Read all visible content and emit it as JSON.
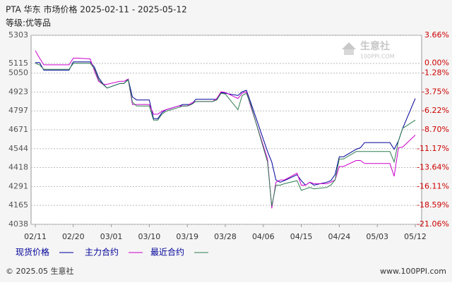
{
  "chart_data": {
    "type": "line",
    "title": "PTA 华东 市场价格 2025-02-11 - 2025-05-12",
    "subtitle": "等级:优等品",
    "x": [
      "02/11",
      "02/12",
      "02/13",
      "02/14",
      "02/17",
      "02/18",
      "02/19",
      "02/20",
      "02/21",
      "02/24",
      "02/25",
      "02/26",
      "02/27",
      "02/28",
      "03/03",
      "03/04",
      "03/05",
      "03/06",
      "03/07",
      "03/10",
      "03/11",
      "03/12",
      "03/13",
      "03/14",
      "03/17",
      "03/18",
      "03/19",
      "03/20",
      "03/21",
      "03/24",
      "03/25",
      "03/26",
      "03/27",
      "03/28",
      "03/31",
      "04/01",
      "04/02",
      "04/03",
      "04/07",
      "04/08",
      "04/09",
      "04/10",
      "04/11",
      "04/14",
      "04/15",
      "04/16",
      "04/17",
      "04/18",
      "04/21",
      "04/22",
      "04/23",
      "04/24",
      "04/25",
      "04/28",
      "04/29",
      "04/30",
      "05/06",
      "05/07",
      "05/08",
      "05/09",
      "05/12"
    ],
    "series": [
      {
        "name": "现货价格",
        "color": "#000099",
        "values": [
          5120,
          5120,
          5070,
          5070,
          5070,
          5070,
          5070,
          5125,
          5125,
          5125,
          5090,
          5020,
          4980,
          4950,
          4980,
          4980,
          5010,
          4890,
          4870,
          4870,
          4745,
          4745,
          4785,
          4805,
          4830,
          4840,
          4840,
          4840,
          4875,
          4875,
          4875,
          4875,
          4920,
          4915,
          4900,
          4925,
          4935,
          4855,
          4525,
          4455,
          4335,
          4320,
          4330,
          4370,
          4330,
          4300,
          4320,
          4300,
          4320,
          4330,
          4370,
          4490,
          4490,
          4540,
          4550,
          4585,
          4585,
          4540,
          4595,
          4680,
          4880
        ]
      },
      {
        "name": "主力合约",
        "color": "#cc00cc",
        "values": [
          5200,
          5150,
          5105,
          5105,
          5105,
          5105,
          5105,
          5150,
          5150,
          5145,
          5065,
          4995,
          4975,
          4975,
          4995,
          4995,
          5010,
          4840,
          4840,
          4840,
          4775,
          4775,
          4795,
          4805,
          4830,
          4830,
          4830,
          4850,
          4860,
          4860,
          4860,
          4880,
          4925,
          4920,
          4880,
          4915,
          4925,
          4830,
          4475,
          4145,
          4320,
          4335,
          4335,
          4380,
          4300,
          4300,
          4320,
          4310,
          4310,
          4320,
          4335,
          4425,
          4425,
          4465,
          4465,
          4445,
          4445,
          4360,
          4550,
          4555,
          4635
        ]
      },
      {
        "name": "最近合约",
        "color": "#2e7d4f",
        "values": [
          5115,
          5105,
          5075,
          5075,
          5075,
          5075,
          5075,
          5115,
          5115,
          5115,
          5080,
          5005,
          4975,
          4950,
          4980,
          4980,
          5005,
          4855,
          4830,
          4830,
          4735,
          4735,
          4775,
          4795,
          4820,
          4830,
          4830,
          4840,
          4860,
          4860,
          4860,
          4870,
          4915,
          4910,
          4805,
          4900,
          4915,
          4840,
          4455,
          4160,
          4300,
          4300,
          4310,
          4330,
          4265,
          4275,
          4285,
          4275,
          4285,
          4300,
          4335,
          4475,
          4475,
          4525,
          4525,
          4525,
          4525,
          4455,
          4595,
          4680,
          4735
        ]
      }
    ],
    "xlim": [
      "02/11",
      "05/12"
    ],
    "xticks": [
      "02/11",
      "02/20",
      "03/01",
      "03/10",
      "03/19",
      "03/28",
      "04/06",
      "04/15",
      "04/24",
      "05/03",
      "05/12"
    ],
    "ylim": [
      4038,
      5303
    ],
    "yticks": [
      5303,
      5115,
      5050,
      4923,
      4797,
      4671,
      4544,
      4418,
      4291,
      4165,
      4038
    ],
    "y2lim": [
      -21.06,
      3.66
    ],
    "y2ticks": [
      {
        "value": 3.66,
        "label": "3.66%"
      },
      {
        "value": 0,
        "label": "0.00%"
      },
      {
        "value": -1.28,
        "label": "-1.28%"
      },
      {
        "value": -3.75,
        "label": "-3.75%"
      },
      {
        "value": -6.22,
        "label": "-6.22%"
      },
      {
        "value": -8.7,
        "label": "-8.70%"
      },
      {
        "value": -11.17,
        "label": "-11.17%"
      },
      {
        "value": -13.64,
        "label": "-13.64%"
      },
      {
        "value": -16.11,
        "label": "-16.11%"
      },
      {
        "value": -18.59,
        "label": "-18.59%"
      },
      {
        "value": -21.06,
        "label": "-21.06%"
      }
    ],
    "y2_color": "#cc0000",
    "grid": true,
    "legend": "bottom",
    "watermark": {
      "name": "生意社",
      "site": "100PPI.COM"
    },
    "copyright": "© 2025.05 生意社",
    "website": "www.100PPI.com"
  }
}
